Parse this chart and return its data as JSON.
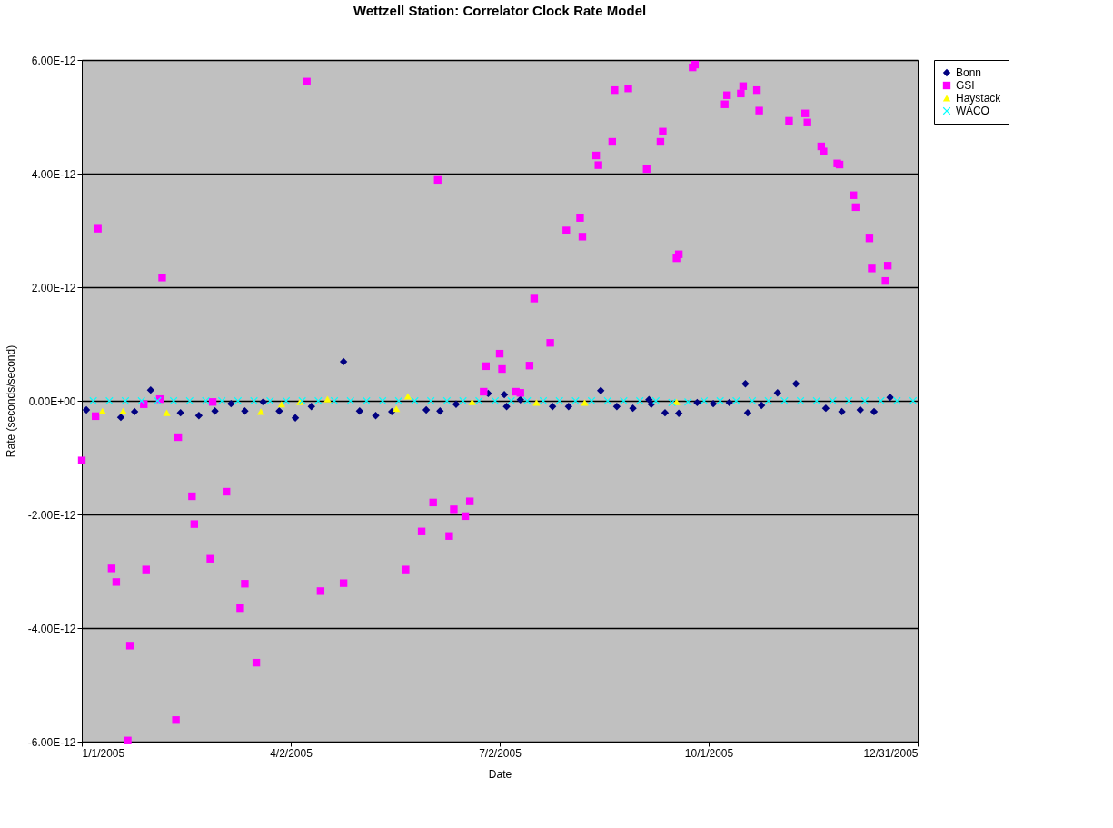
{
  "chart_data": {
    "type": "scatter",
    "title": "Wettzell Station: Correlator Clock Rate Model",
    "xlabel": "Date",
    "ylabel": "Rate (seconds/second)",
    "xlim": [
      "2005-01-01",
      "2005-12-31"
    ],
    "xticks": [
      {
        "value": "2005-01-01",
        "label": "1/1/2005"
      },
      {
        "value": "2005-04-02",
        "label": "4/2/2005"
      },
      {
        "value": "2005-07-02",
        "label": "7/2/2005"
      },
      {
        "value": "2005-10-01",
        "label": "10/1/2005"
      },
      {
        "value": "2005-12-31",
        "label": "12/31/2005"
      }
    ],
    "ylim": [
      -6e-12,
      6e-12
    ],
    "yticks": [
      {
        "value": -6e-12,
        "label": "-6.00E-12"
      },
      {
        "value": -4e-12,
        "label": "-4.00E-12"
      },
      {
        "value": -2e-12,
        "label": "-2.00E-12"
      },
      {
        "value": 0,
        "label": "0.00E+00"
      },
      {
        "value": 2e-12,
        "label": "2.00E-12"
      },
      {
        "value": 4e-12,
        "label": "4.00E-12"
      },
      {
        "value": 6e-12,
        "label": "6.00E-12"
      }
    ],
    "grid": "y",
    "legend": "right",
    "series": [
      {
        "name": "Bonn",
        "color": "#000080",
        "marker": "diamond",
        "x": [
          "2005-01-03",
          "2005-01-18",
          "2005-01-24",
          "2005-01-31",
          "2005-02-13",
          "2005-02-21",
          "2005-02-28",
          "2005-03-07",
          "2005-03-13",
          "2005-03-21",
          "2005-03-28",
          "2005-04-04",
          "2005-04-11",
          "2005-04-25",
          "2005-05-02",
          "2005-05-09",
          "2005-05-16",
          "2005-05-31",
          "2005-06-06",
          "2005-06-13",
          "2005-06-27",
          "2005-07-04",
          "2005-07-05",
          "2005-07-11",
          "2005-07-25",
          "2005-08-01",
          "2005-08-15",
          "2005-08-22",
          "2005-08-29",
          "2005-09-05",
          "2005-09-06",
          "2005-09-12",
          "2005-09-18",
          "2005-09-26",
          "2005-10-03",
          "2005-10-10",
          "2005-10-17",
          "2005-10-18",
          "2005-10-24",
          "2005-10-31",
          "2005-11-08",
          "2005-11-21",
          "2005-11-28",
          "2005-12-06",
          "2005-12-12",
          "2005-12-19"
        ],
        "values": [
          -1.6e-13,
          -2.9e-13,
          -1.9e-13,
          1.9e-13,
          -2.1e-13,
          -2.6e-13,
          -1.8e-13,
          -5e-14,
          -1.8e-13,
          -2e-14,
          -1.8e-13,
          -3e-13,
          -1e-13,
          6.9e-13,
          -1.8e-13,
          -2.6e-13,
          -1.9e-13,
          -1.6e-13,
          -1.8e-13,
          -6e-14,
          1.3e-13,
          1.1e-13,
          -1e-13,
          2e-14,
          -1e-13,
          -1e-13,
          1.8e-13,
          -1e-13,
          -1.3e-13,
          2e-14,
          -6e-14,
          -2.1e-13,
          -2.2e-13,
          -3e-14,
          -5e-14,
          -3e-14,
          3e-13,
          -2.1e-13,
          -8e-14,
          1.4e-13,
          3e-13,
          -1.3e-13,
          -1.9e-13,
          -1.6e-13,
          -1.9e-13,
          6e-14
        ]
      },
      {
        "name": "GSI",
        "color": "#ff00ff",
        "marker": "square",
        "x": [
          "2005-01-01",
          "2005-01-07",
          "2005-01-08",
          "2005-01-14",
          "2005-01-16",
          "2005-01-21",
          "2005-01-22",
          "2005-01-28",
          "2005-01-29",
          "2005-02-04",
          "2005-02-05",
          "2005-02-11",
          "2005-02-12",
          "2005-02-18",
          "2005-02-19",
          "2005-02-26",
          "2005-02-27",
          "2005-03-05",
          "2005-03-11",
          "2005-03-13",
          "2005-03-18",
          "2005-04-09",
          "2005-04-15",
          "2005-04-25",
          "2005-05-22",
          "2005-05-29",
          "2005-06-03",
          "2005-06-05",
          "2005-06-10",
          "2005-06-12",
          "2005-06-17",
          "2005-06-19",
          "2005-06-25",
          "2005-06-26",
          "2005-07-02",
          "2005-07-03",
          "2005-07-09",
          "2005-07-11",
          "2005-07-15",
          "2005-07-17",
          "2005-07-24",
          "2005-07-31",
          "2005-08-06",
          "2005-08-07",
          "2005-08-13",
          "2005-08-14",
          "2005-08-20",
          "2005-08-21",
          "2005-08-27",
          "2005-09-04",
          "2005-09-10",
          "2005-09-11",
          "2005-09-17",
          "2005-09-18",
          "2005-09-24",
          "2005-09-25",
          "2005-10-08",
          "2005-10-09",
          "2005-10-15",
          "2005-10-16",
          "2005-10-22",
          "2005-10-23",
          "2005-11-05",
          "2005-11-12",
          "2005-11-13",
          "2005-11-19",
          "2005-11-20",
          "2005-11-26",
          "2005-11-27",
          "2005-12-03",
          "2005-12-04",
          "2005-12-10",
          "2005-12-11",
          "2005-12-17",
          "2005-12-18"
        ],
        "values": [
          -1.05e-12,
          -2.7e-13,
          3.03e-12,
          -2.95e-12,
          -3.19e-12,
          -5.98e-12,
          -4.31e-12,
          -6e-14,
          -2.97e-12,
          3e-14,
          2.17e-12,
          -5.62e-12,
          -6.4e-13,
          -1.68e-12,
          -2.17e-12,
          -2.78e-12,
          -2e-14,
          -1.6e-12,
          -3.65e-12,
          -3.22e-12,
          -4.61e-12,
          5.62e-12,
          -3.35e-12,
          -3.21e-12,
          -2.97e-12,
          -2.3e-12,
          -1.79e-12,
          3.89e-12,
          -2.38e-12,
          -1.91e-12,
          -2.03e-12,
          -1.77e-12,
          1.6e-13,
          6.1e-13,
          8.3e-13,
          5.6e-13,
          1.6e-13,
          1.4e-13,
          6.2e-13,
          1.8e-12,
          1.02e-12,
          3e-12,
          3.22e-12,
          2.89e-12,
          4.32e-12,
          4.15e-12,
          4.56e-12,
          5.47e-12,
          5.5e-12,
          4.08e-12,
          4.56e-12,
          4.74e-12,
          2.51e-12,
          2.58e-12,
          5.87e-12,
          5.92e-12,
          5.22e-12,
          5.38e-12,
          5.41e-12,
          5.54e-12,
          5.47e-12,
          5.11e-12,
          4.93e-12,
          5.06e-12,
          4.9e-12,
          4.48e-12,
          4.39e-12,
          4.18e-12,
          4.16e-12,
          3.62e-12,
          3.41e-12,
          2.86e-12,
          2.33e-12,
          2.11e-12,
          2.38e-12
        ]
      },
      {
        "name": "Haystack",
        "color": "#ffff00",
        "marker": "triangle",
        "x": [
          "2005-01-10",
          "2005-01-19",
          "2005-02-07",
          "2005-03-20",
          "2005-03-29",
          "2005-04-06",
          "2005-04-18",
          "2005-05-18",
          "2005-05-23",
          "2005-06-20",
          "2005-07-18",
          "2005-08-08",
          "2005-09-17"
        ],
        "values": [
          -1.8e-13,
          -1.8e-13,
          -2.1e-13,
          -1.9e-13,
          -6e-14,
          -2e-14,
          3e-14,
          -1.4e-13,
          8e-14,
          -2e-14,
          -3e-14,
          -3e-14,
          -2e-14
        ]
      },
      {
        "name": "WACO",
        "color": "#00ffff",
        "marker": "cross",
        "x": [
          "2005-01-06",
          "2005-01-13",
          "2005-01-20",
          "2005-01-27",
          "2005-02-03",
          "2005-02-10",
          "2005-02-17",
          "2005-02-24",
          "2005-03-03",
          "2005-03-10",
          "2005-03-17",
          "2005-03-24",
          "2005-03-31",
          "2005-04-07",
          "2005-04-14",
          "2005-04-21",
          "2005-04-28",
          "2005-05-05",
          "2005-05-12",
          "2005-05-19",
          "2005-05-26",
          "2005-06-02",
          "2005-06-09",
          "2005-06-16",
          "2005-06-23",
          "2005-06-30",
          "2005-07-07",
          "2005-07-14",
          "2005-07-21",
          "2005-07-28",
          "2005-08-04",
          "2005-08-11",
          "2005-08-18",
          "2005-08-25",
          "2005-09-01",
          "2005-09-08",
          "2005-09-15",
          "2005-09-22",
          "2005-09-29",
          "2005-10-06",
          "2005-10-13",
          "2005-10-20",
          "2005-10-27",
          "2005-11-03",
          "2005-11-10",
          "2005-11-17",
          "2005-11-24",
          "2005-12-01",
          "2005-12-08",
          "2005-12-15",
          "2005-12-22",
          "2005-12-29"
        ],
        "values": [
          0,
          0,
          0,
          0,
          0,
          0,
          0,
          0,
          0,
          0,
          0,
          0,
          0,
          0,
          0,
          0,
          0,
          0,
          0,
          0,
          0,
          0,
          0,
          0,
          0,
          0,
          0,
          0,
          0,
          0,
          0,
          0,
          0,
          0,
          0,
          0,
          -3e-14,
          -2e-14,
          0,
          0,
          0,
          0,
          0,
          0,
          0,
          0,
          0,
          0,
          0,
          0,
          0,
          0
        ]
      }
    ]
  }
}
